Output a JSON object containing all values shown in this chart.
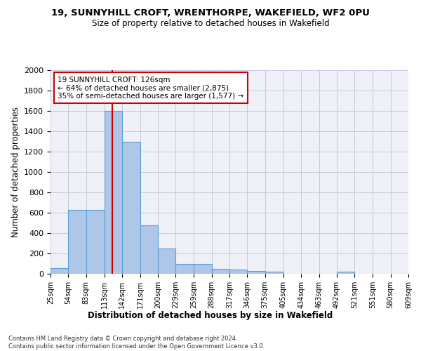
{
  "title1": "19, SUNNYHILL CROFT, WRENTHORPE, WAKEFIELD, WF2 0PU",
  "title2": "Size of property relative to detached houses in Wakefield",
  "xlabel": "Distribution of detached houses by size in Wakefield",
  "ylabel": "Number of detached properties",
  "bar_color": "#aec6e8",
  "bar_edge_color": "#5a9fd4",
  "bin_edges": [
    25,
    54,
    83,
    113,
    142,
    171,
    200,
    229,
    259,
    288,
    317,
    346,
    375,
    405,
    434,
    463,
    492,
    521,
    551,
    580,
    609
  ],
  "bar_heights": [
    55,
    625,
    625,
    1600,
    1300,
    475,
    250,
    100,
    100,
    50,
    40,
    30,
    20,
    0,
    0,
    0,
    20,
    0,
    0,
    0
  ],
  "tick_labels": [
    "25sqm",
    "54sqm",
    "83sqm",
    "113sqm",
    "142sqm",
    "171sqm",
    "200sqm",
    "229sqm",
    "259sqm",
    "288sqm",
    "317sqm",
    "346sqm",
    "375sqm",
    "405sqm",
    "434sqm",
    "463sqm",
    "492sqm",
    "521sqm",
    "551sqm",
    "580sqm",
    "609sqm"
  ],
  "property_size": 126,
  "vline_color": "#cc0000",
  "annotation_text": "19 SUNNYHILL CROFT: 126sqm\n← 64% of detached houses are smaller (2,875)\n35% of semi-detached houses are larger (1,577) →",
  "annotation_box_color": "#cc0000",
  "ylim": [
    0,
    2000
  ],
  "yticks": [
    0,
    200,
    400,
    600,
    800,
    1000,
    1200,
    1400,
    1600,
    1800,
    2000
  ],
  "footnote": "Contains HM Land Registry data © Crown copyright and database right 2024.\nContains public sector information licensed under the Open Government Licence v3.0.",
  "bg_color": "#f0f0f8",
  "grid_color": "#c8c8dc"
}
